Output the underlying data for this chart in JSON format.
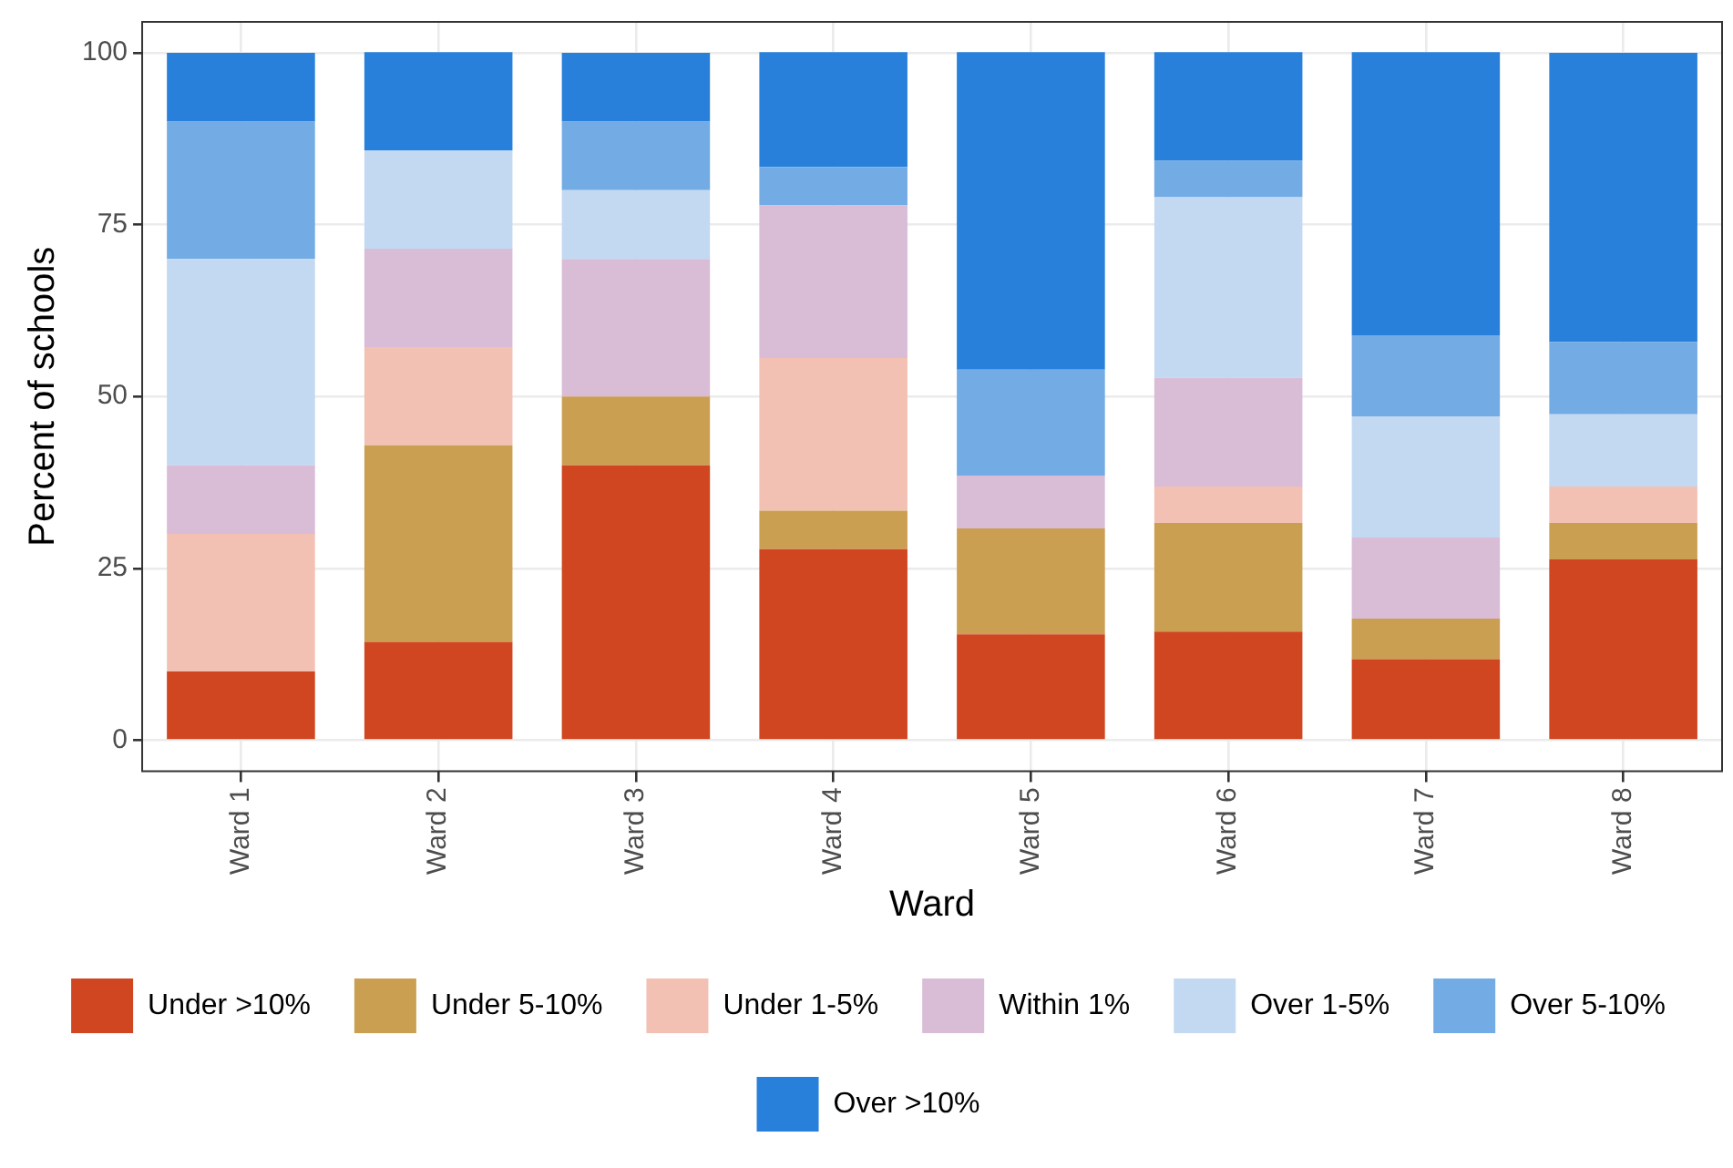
{
  "chart_data": {
    "type": "bar",
    "stacked": true,
    "xlabel": "Ward",
    "ylabel": "Percent of schools",
    "categories": [
      "Ward 1",
      "Ward 2",
      "Ward 3",
      "Ward 4",
      "Ward 5",
      "Ward 6",
      "Ward 7",
      "Ward 8"
    ],
    "ylim": [
      -4.5,
      104.5
    ],
    "yticks": [
      0,
      25,
      50,
      75,
      100
    ],
    "grid": true,
    "legend": "bottom",
    "series": [
      {
        "name": "Under >10%",
        "color": "#d04620",
        "values": [
          10,
          14.3,
          40,
          27.8,
          15.4,
          15.8,
          11.8,
          26.3
        ]
      },
      {
        "name": "Under 5-10%",
        "color": "#cb9f52",
        "values": [
          0,
          28.6,
          10,
          5.6,
          15.4,
          15.8,
          5.9,
          5.3
        ]
      },
      {
        "name": "Under 1-5%",
        "color": "#f2c1b3",
        "values": [
          20,
          14.3,
          0,
          22.2,
          0,
          5.3,
          0,
          5.3
        ]
      },
      {
        "name": "Within 1%",
        "color": "#d9bcd6",
        "values": [
          10,
          14.3,
          20,
          22.2,
          7.7,
          15.8,
          11.8,
          0
        ]
      },
      {
        "name": "Over 1-5%",
        "color": "#c3d9f1",
        "values": [
          30,
          14.3,
          10,
          0,
          0,
          26.3,
          17.6,
          10.5
        ]
      },
      {
        "name": "Over 5-10%",
        "color": "#73abe4",
        "values": [
          20,
          0,
          10,
          5.6,
          15.4,
          5.3,
          11.8,
          10.5
        ]
      },
      {
        "name": "Over >10%",
        "color": "#2880da",
        "values": [
          10,
          14.3,
          10,
          16.7,
          46.2,
          15.8,
          41.2,
          42.1
        ]
      }
    ]
  }
}
